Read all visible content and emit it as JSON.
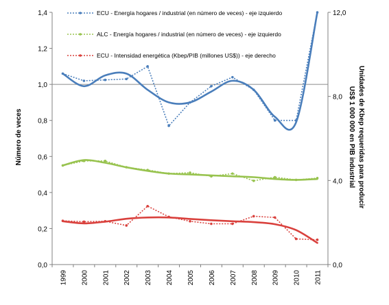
{
  "chart_data": {
    "type": "line",
    "x": [
      "1999",
      "2000",
      "2001",
      "2002",
      "2003",
      "2004",
      "2005",
      "2006",
      "2007",
      "2008",
      "2009",
      "2010",
      "2011"
    ],
    "ylabel_left": "Número de veces",
    "ylabel_right_line1": "Unidades de Kbep requeridas para producir",
    "ylabel_right_line2": "US$ 1 000 000 en PIB industrial",
    "ylim_left": [
      0,
      1.4
    ],
    "ylim_right": [
      0,
      12
    ],
    "yticks_left": [
      "0,0",
      "0,2",
      "0,4",
      "0,6",
      "0,8",
      "1,0",
      "1,2",
      "1,4"
    ],
    "yticks_right": [
      "0,0",
      "4,0",
      "8,0",
      "12,0"
    ],
    "reference_line_left": 1.0,
    "grid": false,
    "legend_position": "top-center",
    "series": [
      {
        "name": "ECU - Energía hogares / industrial (en número de veces) - eje izquierdo",
        "axis": "left",
        "color": "#4a7ebb",
        "values": [
          1.06,
          1.02,
          1.025,
          1.03,
          1.1,
          0.77,
          0.9,
          0.99,
          1.04,
          0.97,
          0.8,
          0.8,
          1.4
        ],
        "trend": [
          1.06,
          0.99,
          1.05,
          1.06,
          0.97,
          0.9,
          0.9,
          0.96,
          1.02,
          0.97,
          0.82,
          0.79,
          1.4
        ]
      },
      {
        "name": "ALC - Energía hogares / industrial (en número de veces) - eje izquierdo",
        "axis": "left",
        "color": "#98c34f",
        "values": [
          0.55,
          0.575,
          0.575,
          0.54,
          0.525,
          0.505,
          0.51,
          0.49,
          0.505,
          0.465,
          0.485,
          0.47,
          0.48
        ],
        "trend": [
          0.55,
          0.58,
          0.565,
          0.54,
          0.52,
          0.505,
          0.5,
          0.495,
          0.49,
          0.485,
          0.475,
          0.47,
          0.475
        ]
      },
      {
        "name": "ECU - Intensidad energética (Kbep/PIB (millones US$)) - eje derecho",
        "axis": "right",
        "color": "#d9403c",
        "values": [
          2.08,
          2.04,
          2.06,
          1.86,
          2.78,
          2.27,
          2.06,
          1.94,
          1.94,
          2.3,
          2.24,
          1.22,
          1.18
        ],
        "trend": [
          2.06,
          1.96,
          2.04,
          2.18,
          2.24,
          2.24,
          2.17,
          2.11,
          2.06,
          2.02,
          1.92,
          1.64,
          1.03
        ]
      }
    ]
  }
}
